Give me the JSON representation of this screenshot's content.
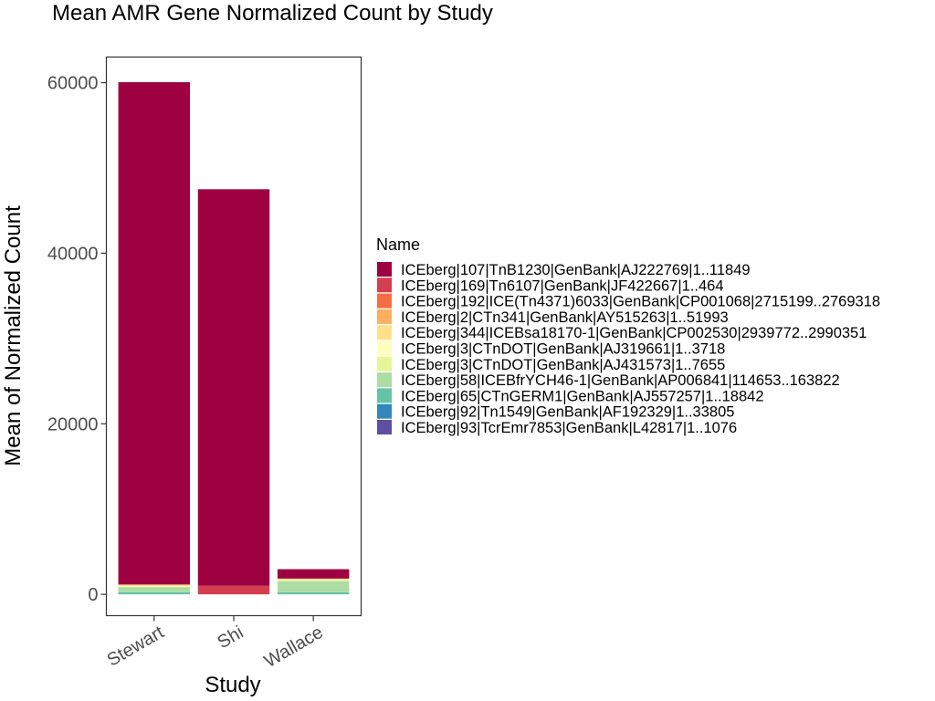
{
  "chart_data": {
    "type": "bar",
    "stacked": true,
    "title": "Mean AMR Gene Normalized Count by Study",
    "xlabel": "Study",
    "ylabel": "Mean of Normalized Count",
    "categories": [
      "Stewart",
      "Shi",
      "Wallace"
    ],
    "ylim": [
      -2500,
      63000
    ],
    "yticks": [
      0,
      20000,
      40000,
      60000
    ],
    "ytick_labels": [
      "0",
      "20000",
      "40000",
      "60000"
    ],
    "grid": false,
    "legend": {
      "title": "Name",
      "position": "right"
    },
    "series": [
      {
        "name": "ICEberg|107|TnB1230|GenBank|AJ222769|1..11849",
        "color": "#9E0142",
        "values": [
          58900,
          46500,
          1100
        ]
      },
      {
        "name": "ICEberg|169|Tn6107|GenBank|JF422667|1..464",
        "color": "#D53E4F",
        "values": [
          0,
          1000,
          0
        ]
      },
      {
        "name": "ICEberg|192|ICE(Tn4371)6033|GenBank|CP001068|2715199..2769318",
        "color": "#F46D43",
        "values": [
          0,
          0,
          0
        ]
      },
      {
        "name": "ICEberg|2|CTn341|GenBank|AY515263|1..51993",
        "color": "#FDAE61",
        "values": [
          0,
          0,
          0
        ]
      },
      {
        "name": "ICEberg|344|ICEBsa18170-1|GenBank|CP002530|2939772..2990351",
        "color": "#FEE08B",
        "values": [
          200,
          0,
          200
        ]
      },
      {
        "name": "ICEberg|3|CTnDOT|GenBank|AJ319661|1..3718",
        "color": "#FFFFBF",
        "values": [
          50,
          0,
          50
        ]
      },
      {
        "name": "ICEberg|3|CTnDOT|GenBank|AJ431573|1..7655",
        "color": "#E6F598",
        "values": [
          50,
          0,
          50
        ]
      },
      {
        "name": "ICEberg|58|ICEBfrYCH46-1|GenBank|AP006841|114653..163822",
        "color": "#ABDDA4",
        "values": [
          600,
          0,
          1300
        ]
      },
      {
        "name": "ICEberg|65|CTnGERM1|GenBank|AJ557257|1..18842",
        "color": "#66C2A5",
        "values": [
          250,
          0,
          250
        ]
      },
      {
        "name": "ICEberg|92|Tn1549|GenBank|AF192329|1..33805",
        "color": "#3288BD",
        "values": [
          0,
          0,
          0
        ]
      },
      {
        "name": "ICEberg|93|TcrEmr7853|GenBank|L42817|1..1076",
        "color": "#5E4FA2",
        "values": [
          0,
          0,
          0
        ]
      }
    ]
  }
}
